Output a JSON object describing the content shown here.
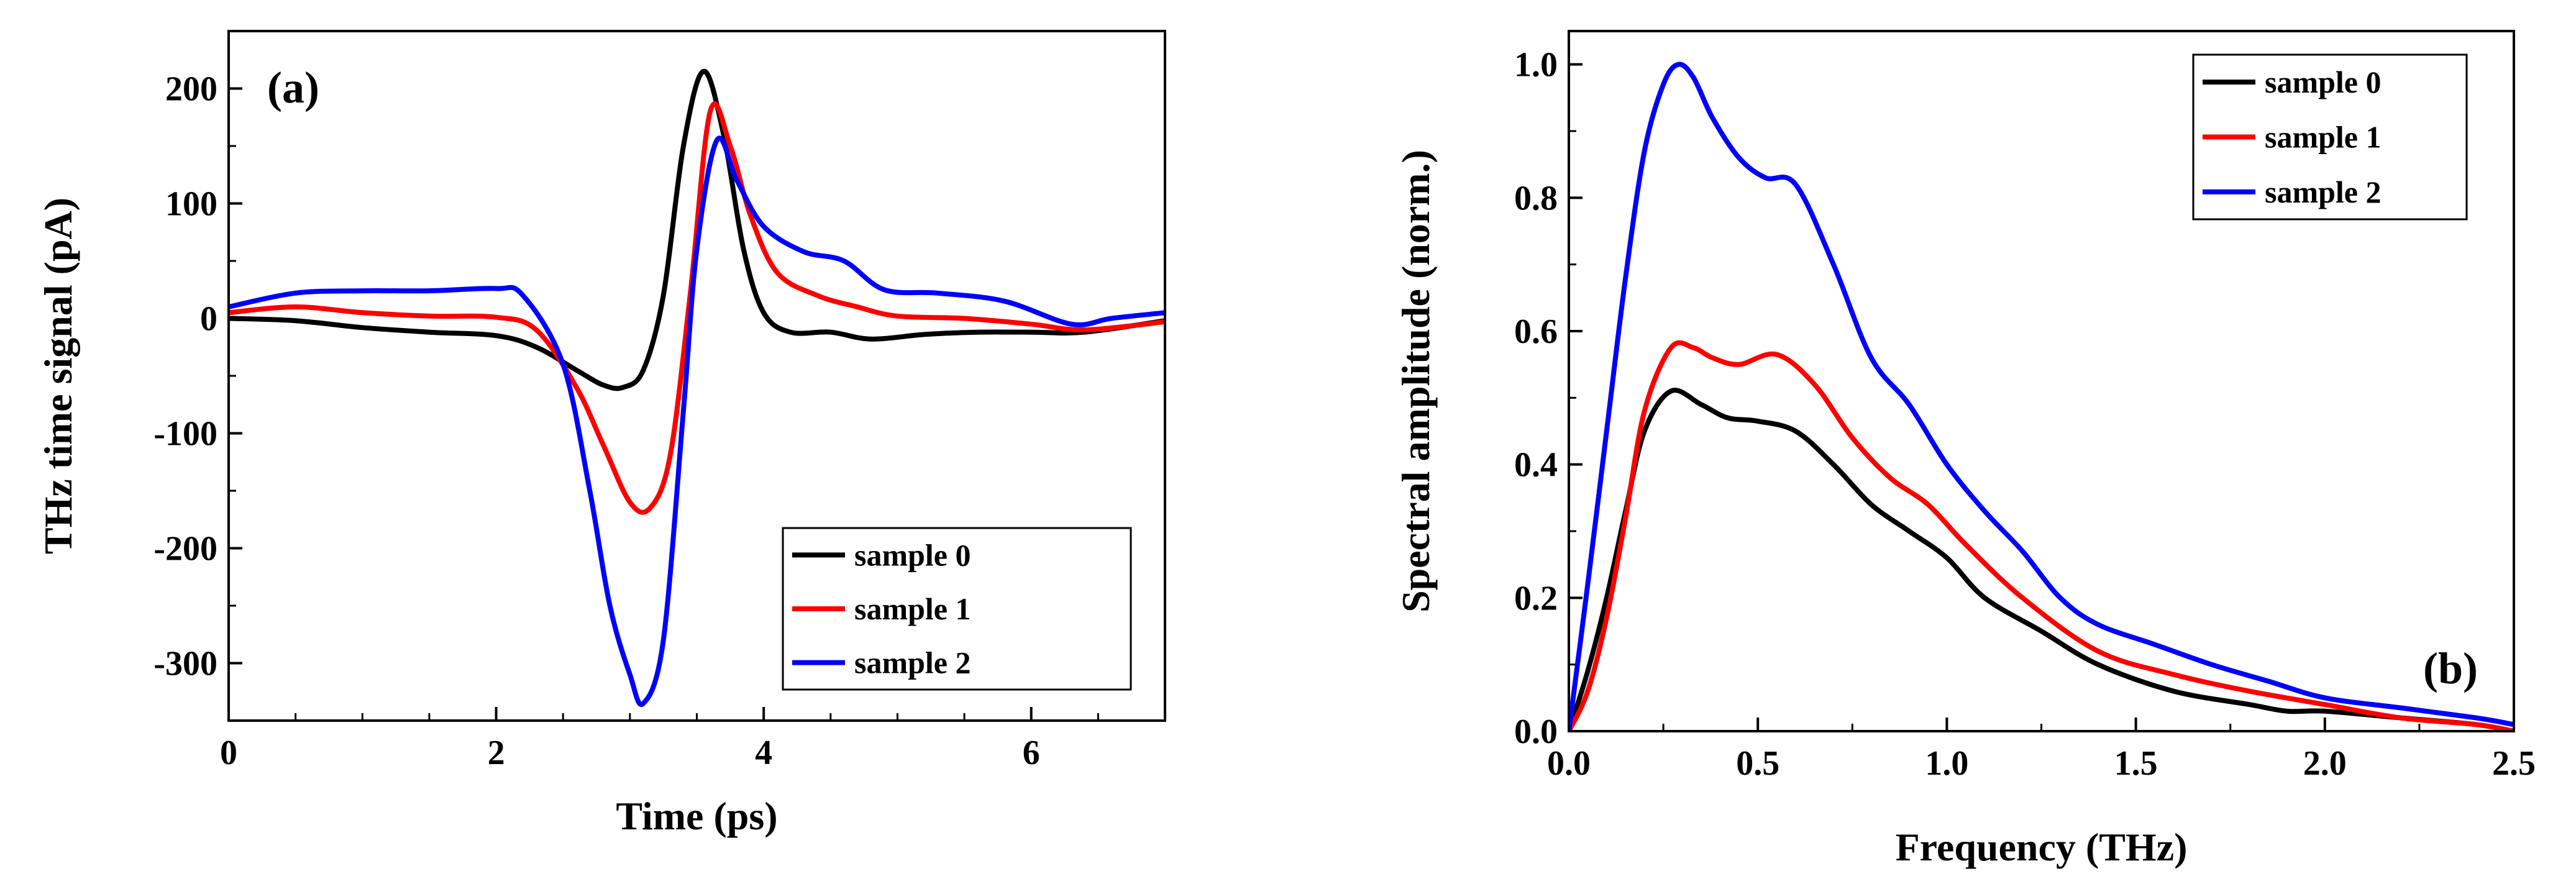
{
  "chart_data": [
    {
      "panel_label": "(a)",
      "type": "line",
      "xlabel": "Time (ps)",
      "ylabel": "THz time signal (pA)",
      "xlim": [
        0,
        7
      ],
      "ylim": [
        -350,
        250
      ],
      "xticks": [
        0,
        2,
        4,
        6
      ],
      "yticks": [
        -300,
        -200,
        -100,
        0,
        100,
        200
      ],
      "legend_position": "bottom-right",
      "series": [
        {
          "name": "sample 0",
          "color": "#000000",
          "x": [
            0,
            0.5,
            1,
            1.5,
            2,
            2.3,
            2.6,
            2.8,
            2.95,
            3.1,
            3.25,
            3.4,
            3.55,
            3.7,
            3.85,
            4.0,
            4.2,
            4.5,
            4.8,
            5.2,
            5.6,
            6.0,
            6.4,
            7.0
          ],
          "y": [
            0,
            -2,
            -8,
            -12,
            -15,
            -25,
            -45,
            -58,
            -60,
            -45,
            20,
            150,
            215,
            160,
            60,
            5,
            -12,
            -12,
            -18,
            -14,
            -12,
            -12,
            -12,
            -2
          ]
        },
        {
          "name": "sample 1",
          "color": "#ff0000",
          "x": [
            0,
            0.5,
            1,
            1.5,
            2,
            2.3,
            2.6,
            2.8,
            3.0,
            3.15,
            3.3,
            3.45,
            3.6,
            3.75,
            3.9,
            4.1,
            4.4,
            4.7,
            5.0,
            5.5,
            6.0,
            6.4,
            7.0
          ],
          "y": [
            5,
            10,
            5,
            2,
            1,
            -10,
            -60,
            -110,
            -160,
            -165,
            -120,
            20,
            180,
            150,
            90,
            40,
            20,
            10,
            2,
            0,
            -5,
            -10,
            -3
          ]
        },
        {
          "name": "sample 2",
          "color": "#0000ff",
          "x": [
            0,
            0.5,
            1,
            1.5,
            2,
            2.2,
            2.5,
            2.7,
            2.85,
            3.0,
            3.1,
            3.25,
            3.4,
            3.5,
            3.65,
            3.8,
            4.0,
            4.3,
            4.6,
            4.9,
            5.3,
            5.8,
            6.3,
            6.6,
            7.0
          ],
          "y": [
            10,
            22,
            24,
            24,
            26,
            20,
            -40,
            -150,
            -250,
            -310,
            -335,
            -280,
            -80,
            60,
            155,
            120,
            80,
            58,
            50,
            25,
            22,
            15,
            -5,
            0,
            5
          ]
        }
      ]
    },
    {
      "panel_label": "(b)",
      "type": "line",
      "xlabel": "Frequency (THz)",
      "ylabel": "Spectral amplitude (norm.)",
      "xlim": [
        0,
        2.5
      ],
      "ylim": [
        0,
        1.05
      ],
      "xticks": [
        "0.0",
        "0.5",
        "1.0",
        "1.5",
        "2.0",
        "2.5"
      ],
      "yticks": [
        "0.0",
        "0.2",
        "0.4",
        "0.6",
        "0.8",
        "1.0"
      ],
      "legend_position": "top-right",
      "series": [
        {
          "name": "sample 0",
          "color": "#000000",
          "x": [
            0,
            0.05,
            0.1,
            0.15,
            0.2,
            0.27,
            0.35,
            0.42,
            0.5,
            0.6,
            0.7,
            0.8,
            0.9,
            1.0,
            1.1,
            1.25,
            1.4,
            1.6,
            1.8,
            1.9,
            2.0,
            2.2,
            2.4,
            2.5
          ],
          "y": [
            0,
            0.09,
            0.2,
            0.33,
            0.45,
            0.51,
            0.49,
            0.47,
            0.465,
            0.45,
            0.4,
            0.34,
            0.3,
            0.26,
            0.2,
            0.15,
            0.1,
            0.06,
            0.04,
            0.03,
            0.03,
            0.02,
            0.01,
            0
          ]
        },
        {
          "name": "sample 1",
          "color": "#ff0000",
          "x": [
            0,
            0.05,
            0.1,
            0.15,
            0.2,
            0.27,
            0.33,
            0.38,
            0.45,
            0.55,
            0.65,
            0.75,
            0.85,
            0.95,
            1.05,
            1.2,
            1.4,
            1.6,
            1.8,
            2.0,
            2.2,
            2.4,
            2.5
          ],
          "y": [
            0,
            0.06,
            0.17,
            0.32,
            0.48,
            0.575,
            0.575,
            0.56,
            0.55,
            0.565,
            0.52,
            0.44,
            0.38,
            0.34,
            0.28,
            0.2,
            0.12,
            0.085,
            0.06,
            0.04,
            0.02,
            0.01,
            0
          ]
        },
        {
          "name": "sample 2",
          "color": "#0000ff",
          "x": [
            0,
            0.05,
            0.1,
            0.15,
            0.2,
            0.25,
            0.29,
            0.33,
            0.38,
            0.45,
            0.52,
            0.6,
            0.7,
            0.8,
            0.9,
            1.0,
            1.1,
            1.2,
            1.3,
            1.4,
            1.55,
            1.7,
            1.85,
            2.0,
            2.2,
            2.4,
            2.5
          ],
          "y": [
            0,
            0.22,
            0.45,
            0.68,
            0.87,
            0.97,
            1.0,
            0.98,
            0.92,
            0.86,
            0.83,
            0.82,
            0.7,
            0.56,
            0.49,
            0.4,
            0.33,
            0.27,
            0.2,
            0.16,
            0.13,
            0.1,
            0.075,
            0.05,
            0.035,
            0.02,
            0.01
          ]
        }
      ]
    }
  ]
}
